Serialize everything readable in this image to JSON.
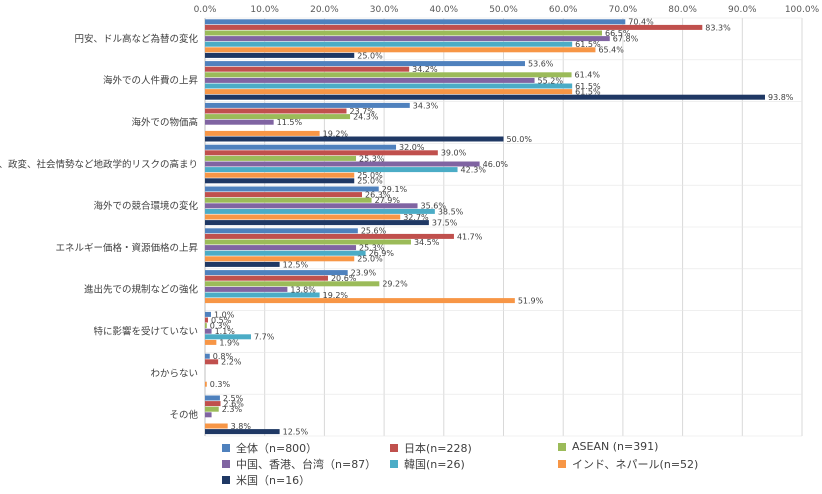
{
  "chart_data": {
    "type": "bar",
    "orientation": "horizontal",
    "x_ticks": [
      "0.0%",
      "10.0%",
      "20.0%",
      "30.0%",
      "40.0%",
      "50.0%",
      "60.0%",
      "70.0%",
      "80.0%",
      "90.0%",
      "100.0%"
    ],
    "xlim": [
      0,
      100
    ],
    "grid": true,
    "legend_position": "bottom",
    "categories": [
      "円安、ドル高など為替の変化",
      "海外での人件費の上昇",
      "海外での物価高",
      "紛争、政変、社会情勢など地政学的リスクの高まり",
      "海外での競合環境の変化",
      "エネルギー価格・資源価格の上昇",
      "進出先での規制などの強化",
      "特に影響を受けていない",
      "わからない",
      "その他"
    ],
    "series": [
      {
        "name": "全体（n=800）",
        "color": "#4f81bd",
        "values": [
          70.4,
          53.6,
          34.3,
          32.0,
          29.1,
          25.6,
          23.9,
          1.0,
          0.8,
          2.5
        ],
        "labels": [
          "70.4%",
          "53.6%",
          "34.3%",
          "32.0%",
          "29.1%",
          "25.6%",
          "23.9%",
          "1.0%",
          "0.8%",
          "2.5%"
        ]
      },
      {
        "name": "日本(n=228)",
        "color": "#c0504d",
        "values": [
          83.3,
          34.2,
          23.7,
          39.0,
          26.3,
          41.7,
          20.6,
          0.5,
          2.2,
          2.6
        ],
        "labels": [
          "83.3%",
          "34.2%",
          "23.7%",
          "39.0%",
          "26.3%",
          "41.7%",
          "20.6%",
          "0.5%",
          "2.2%",
          "2.6%"
        ]
      },
      {
        "name": "ASEAN (n=391)",
        "color": "#9bbb59",
        "values": [
          66.5,
          61.4,
          24.3,
          25.3,
          27.9,
          34.5,
          29.2,
          0.3,
          0.0,
          2.3
        ],
        "labels": [
          "66.5%",
          "61.4%",
          "24.3%",
          "25.3%",
          "27.9%",
          "34.5%",
          "29.2%",
          "0.3%",
          "",
          "2.3%"
        ]
      },
      {
        "name": "中国、香港、台湾（n=87）",
        "color": "#8064a2",
        "values": [
          67.8,
          55.2,
          11.5,
          46.0,
          35.6,
          25.3,
          13.8,
          1.1,
          0.0,
          1.1
        ],
        "labels": [
          "67.8%",
          "55.2%",
          "11.5%",
          "46.0%",
          "35.6%",
          "25.3%",
          "13.8%",
          "1.1%",
          "",
          ""
        ]
      },
      {
        "name": "韓国(n=26)",
        "color": "#4bacc6",
        "values": [
          61.5,
          61.5,
          0.0,
          42.3,
          38.5,
          26.9,
          19.2,
          7.7,
          0.0,
          0.0
        ],
        "labels": [
          "61.5%",
          "61.5%",
          "",
          "42.3%",
          "38.5%",
          "26.9%",
          "19.2%",
          "7.7%",
          "",
          ""
        ]
      },
      {
        "name": "インド、ネパール(n=52)",
        "color": "#f79646",
        "values": [
          65.4,
          61.5,
          19.2,
          25.0,
          32.7,
          25.0,
          51.9,
          1.9,
          0.3,
          3.8
        ],
        "labels": [
          "65.4%",
          "61.5%",
          "19.2%",
          "25.0%",
          "32.7%",
          "25.0%",
          "51.9%",
          "1.9%",
          "0.3%",
          "3.8%"
        ]
      },
      {
        "name": "米国（n=16）",
        "color": "#1f3864",
        "values": [
          25.0,
          93.8,
          50.0,
          25.0,
          37.5,
          12.5,
          0.0,
          0.0,
          0.0,
          12.5
        ],
        "labels": [
          "25.0%",
          "93.8%",
          "50.0%",
          "25.0%",
          "37.5%",
          "12.5%",
          "",
          "",
          "",
          "12.5%"
        ]
      }
    ]
  }
}
